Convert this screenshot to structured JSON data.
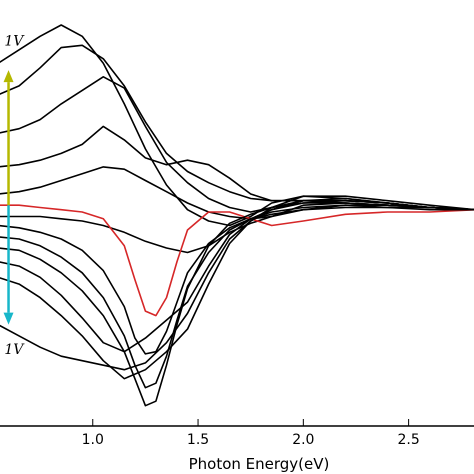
{
  "chart_data": {
    "type": "line",
    "xlabel": "Photon Energy(eV)",
    "ylabel": "",
    "xlim": [
      0.55,
      2.82
    ],
    "ylim": [
      -0.95,
      0.95
    ],
    "x_ticks": [
      1.0,
      1.5,
      2.0,
      2.5
    ],
    "x_tick_labels": [
      "1.0",
      "1.5",
      "2.0",
      "2.5"
    ],
    "grid": false,
    "legend": "none",
    "annotations": [
      {
        "text": "1V",
        "x": 0.58,
        "y": 0.74
      },
      {
        "text": "1V",
        "x": 0.58,
        "y": -0.63
      }
    ],
    "arrows": [
      {
        "name": "yellow arrow",
        "color": "#b5b800",
        "x": 0.6,
        "y_from": 0.03,
        "y_to": 0.63
      },
      {
        "name": "cyan arrow",
        "color": "#17b6c9",
        "x": 0.6,
        "y_from": 0.03,
        "y_to": -0.5
      }
    ],
    "series": [
      {
        "color": "#000000",
        "x": [
          0.55,
          0.65,
          0.75,
          0.85,
          0.95,
          1.05,
          1.15,
          1.25,
          1.35,
          1.45,
          1.55,
          1.65,
          1.75,
          1.85,
          2.0,
          2.2,
          2.4,
          2.6,
          2.82
        ],
        "y": [
          0.66,
          0.72,
          0.78,
          0.83,
          0.78,
          0.66,
          0.48,
          0.28,
          0.12,
          0.01,
          -0.04,
          -0.06,
          -0.02,
          0.04,
          0.07,
          0.06,
          0.04,
          0.02,
          0.01
        ]
      },
      {
        "color": "#000000",
        "x": [
          0.55,
          0.65,
          0.75,
          0.85,
          0.95,
          1.05,
          1.15,
          1.25,
          1.35,
          1.45,
          1.55,
          1.65,
          1.75,
          1.85,
          2.0,
          2.2,
          2.4,
          2.6,
          2.82
        ],
        "y": [
          0.52,
          0.56,
          0.64,
          0.73,
          0.74,
          0.68,
          0.56,
          0.4,
          0.26,
          0.18,
          0.13,
          0.09,
          0.06,
          0.05,
          0.05,
          0.05,
          0.04,
          0.02,
          0.01
        ]
      },
      {
        "color": "#000000",
        "x": [
          0.55,
          0.65,
          0.75,
          0.85,
          0.95,
          1.05,
          1.15,
          1.25,
          1.35,
          1.45,
          1.55,
          1.65,
          1.75,
          1.85,
          2.0,
          2.2,
          2.4,
          2.6,
          2.82
        ],
        "y": [
          0.35,
          0.37,
          0.41,
          0.48,
          0.54,
          0.6,
          0.55,
          0.38,
          0.22,
          0.13,
          0.06,
          0.02,
          0.0,
          0.02,
          0.05,
          0.05,
          0.04,
          0.02,
          0.01
        ]
      },
      {
        "color": "#000000",
        "x": [
          0.55,
          0.65,
          0.75,
          0.85,
          0.95,
          1.05,
          1.15,
          1.25,
          1.35,
          1.45,
          1.55,
          1.65,
          1.75,
          1.85,
          2.0,
          2.2,
          2.4,
          2.6,
          2.82
        ],
        "y": [
          0.2,
          0.21,
          0.23,
          0.26,
          0.3,
          0.38,
          0.32,
          0.24,
          0.21,
          0.23,
          0.21,
          0.15,
          0.08,
          0.05,
          0.05,
          0.04,
          0.03,
          0.02,
          0.01
        ]
      },
      {
        "color": "#000000",
        "x": [
          0.55,
          0.65,
          0.75,
          0.85,
          0.95,
          1.05,
          1.15,
          1.25,
          1.35,
          1.45,
          1.55,
          1.65,
          1.75,
          1.85,
          2.0,
          2.2,
          2.4,
          2.6,
          2.82
        ],
        "y": [
          0.08,
          0.09,
          0.11,
          0.14,
          0.17,
          0.2,
          0.19,
          0.14,
          0.09,
          0.04,
          0.0,
          -0.02,
          -0.03,
          -0.02,
          0.03,
          0.04,
          0.03,
          0.02,
          0.01
        ]
      },
      {
        "color": "#000000",
        "x": [
          0.55,
          0.65,
          0.75,
          0.85,
          0.95,
          1.05,
          1.15,
          1.25,
          1.35,
          1.45,
          1.55,
          1.65,
          1.75,
          1.85,
          2.0,
          2.2,
          2.4,
          2.6,
          2.82
        ],
        "y": [
          -0.02,
          -0.02,
          -0.02,
          -0.03,
          -0.04,
          -0.06,
          -0.09,
          -0.13,
          -0.16,
          -0.18,
          -0.15,
          -0.09,
          -0.05,
          -0.02,
          0.01,
          0.03,
          0.03,
          0.02,
          0.01
        ]
      },
      {
        "color": "#d62728",
        "x": [
          0.55,
          0.65,
          0.75,
          0.85,
          0.95,
          1.05,
          1.15,
          1.2,
          1.25,
          1.3,
          1.35,
          1.4,
          1.45,
          1.55,
          1.65,
          1.75,
          1.85,
          2.0,
          2.2,
          2.4,
          2.6,
          2.82
        ],
        "y": [
          0.03,
          0.03,
          0.02,
          0.01,
          0.0,
          -0.03,
          -0.15,
          -0.3,
          -0.44,
          -0.46,
          -0.38,
          -0.22,
          -0.08,
          0.0,
          0.0,
          -0.03,
          -0.06,
          -0.04,
          -0.01,
          0.0,
          0.0,
          0.01
        ]
      },
      {
        "color": "#000000",
        "x": [
          0.55,
          0.65,
          0.75,
          0.85,
          0.95,
          1.05,
          1.15,
          1.2,
          1.25,
          1.3,
          1.35,
          1.4,
          1.45,
          1.55,
          1.65,
          1.75,
          1.85,
          2.0,
          2.2,
          2.4,
          2.6,
          2.82
        ],
        "y": [
          -0.06,
          -0.07,
          -0.09,
          -0.12,
          -0.17,
          -0.26,
          -0.42,
          -0.56,
          -0.63,
          -0.62,
          -0.53,
          -0.4,
          -0.27,
          -0.14,
          -0.07,
          -0.03,
          -0.01,
          0.01,
          0.02,
          0.02,
          0.01,
          0.01
        ]
      },
      {
        "color": "#000000",
        "x": [
          0.55,
          0.65,
          0.75,
          0.85,
          0.95,
          1.05,
          1.15,
          1.2,
          1.25,
          1.3,
          1.35,
          1.4,
          1.45,
          1.55,
          1.65,
          1.75,
          1.85,
          2.0,
          2.2,
          2.4,
          2.6,
          2.82
        ],
        "y": [
          -0.11,
          -0.12,
          -0.15,
          -0.2,
          -0.27,
          -0.38,
          -0.55,
          -0.68,
          -0.78,
          -0.76,
          -0.64,
          -0.48,
          -0.33,
          -0.18,
          -0.08,
          -0.03,
          0.0,
          0.02,
          0.03,
          0.02,
          0.02,
          0.01
        ]
      },
      {
        "color": "#000000",
        "x": [
          0.55,
          0.65,
          0.75,
          0.85,
          0.95,
          1.05,
          1.15,
          1.2,
          1.25,
          1.3,
          1.35,
          1.4,
          1.45,
          1.55,
          1.65,
          1.75,
          1.85,
          2.0,
          2.2,
          2.4,
          2.6,
          2.82
        ],
        "y": [
          -0.16,
          -0.17,
          -0.21,
          -0.27,
          -0.35,
          -0.46,
          -0.62,
          -0.74,
          -0.86,
          -0.84,
          -0.68,
          -0.5,
          -0.34,
          -0.15,
          -0.05,
          -0.01,
          0.02,
          0.04,
          0.04,
          0.03,
          0.02,
          0.01
        ]
      },
      {
        "color": "#000000",
        "x": [
          0.55,
          0.65,
          0.75,
          0.85,
          0.95,
          1.05,
          1.15,
          1.25,
          1.35,
          1.45,
          1.55,
          1.65,
          1.75,
          1.85,
          2.0,
          2.2,
          2.4,
          2.6,
          2.82
        ],
        "y": [
          -0.22,
          -0.24,
          -0.29,
          -0.37,
          -0.47,
          -0.58,
          -0.62,
          -0.56,
          -0.48,
          -0.4,
          -0.24,
          -0.1,
          -0.03,
          0.01,
          0.04,
          0.05,
          0.04,
          0.02,
          0.01
        ]
      },
      {
        "color": "#000000",
        "x": [
          0.55,
          0.65,
          0.75,
          0.85,
          0.95,
          1.05,
          1.15,
          1.25,
          1.35,
          1.45,
          1.55,
          1.65,
          1.75,
          1.85,
          2.0,
          2.2,
          2.4,
          2.6,
          2.82
        ],
        "y": [
          -0.29,
          -0.32,
          -0.38,
          -0.46,
          -0.55,
          -0.66,
          -0.74,
          -0.7,
          -0.62,
          -0.52,
          -0.32,
          -0.14,
          -0.04,
          0.01,
          0.05,
          0.06,
          0.04,
          0.02,
          0.01
        ]
      },
      {
        "color": "#000000",
        "x": [
          0.55,
          0.65,
          0.75,
          0.85,
          0.95,
          1.05,
          1.15,
          1.25,
          1.35,
          1.45,
          1.55,
          1.65,
          1.75,
          1.85,
          2.0,
          2.2,
          2.4,
          2.6,
          2.82
        ],
        "y": [
          -0.5,
          -0.55,
          -0.6,
          -0.64,
          -0.66,
          -0.68,
          -0.7,
          -0.67,
          -0.58,
          -0.45,
          -0.27,
          -0.12,
          -0.04,
          0.02,
          0.07,
          0.07,
          0.05,
          0.03,
          0.01
        ]
      }
    ]
  }
}
